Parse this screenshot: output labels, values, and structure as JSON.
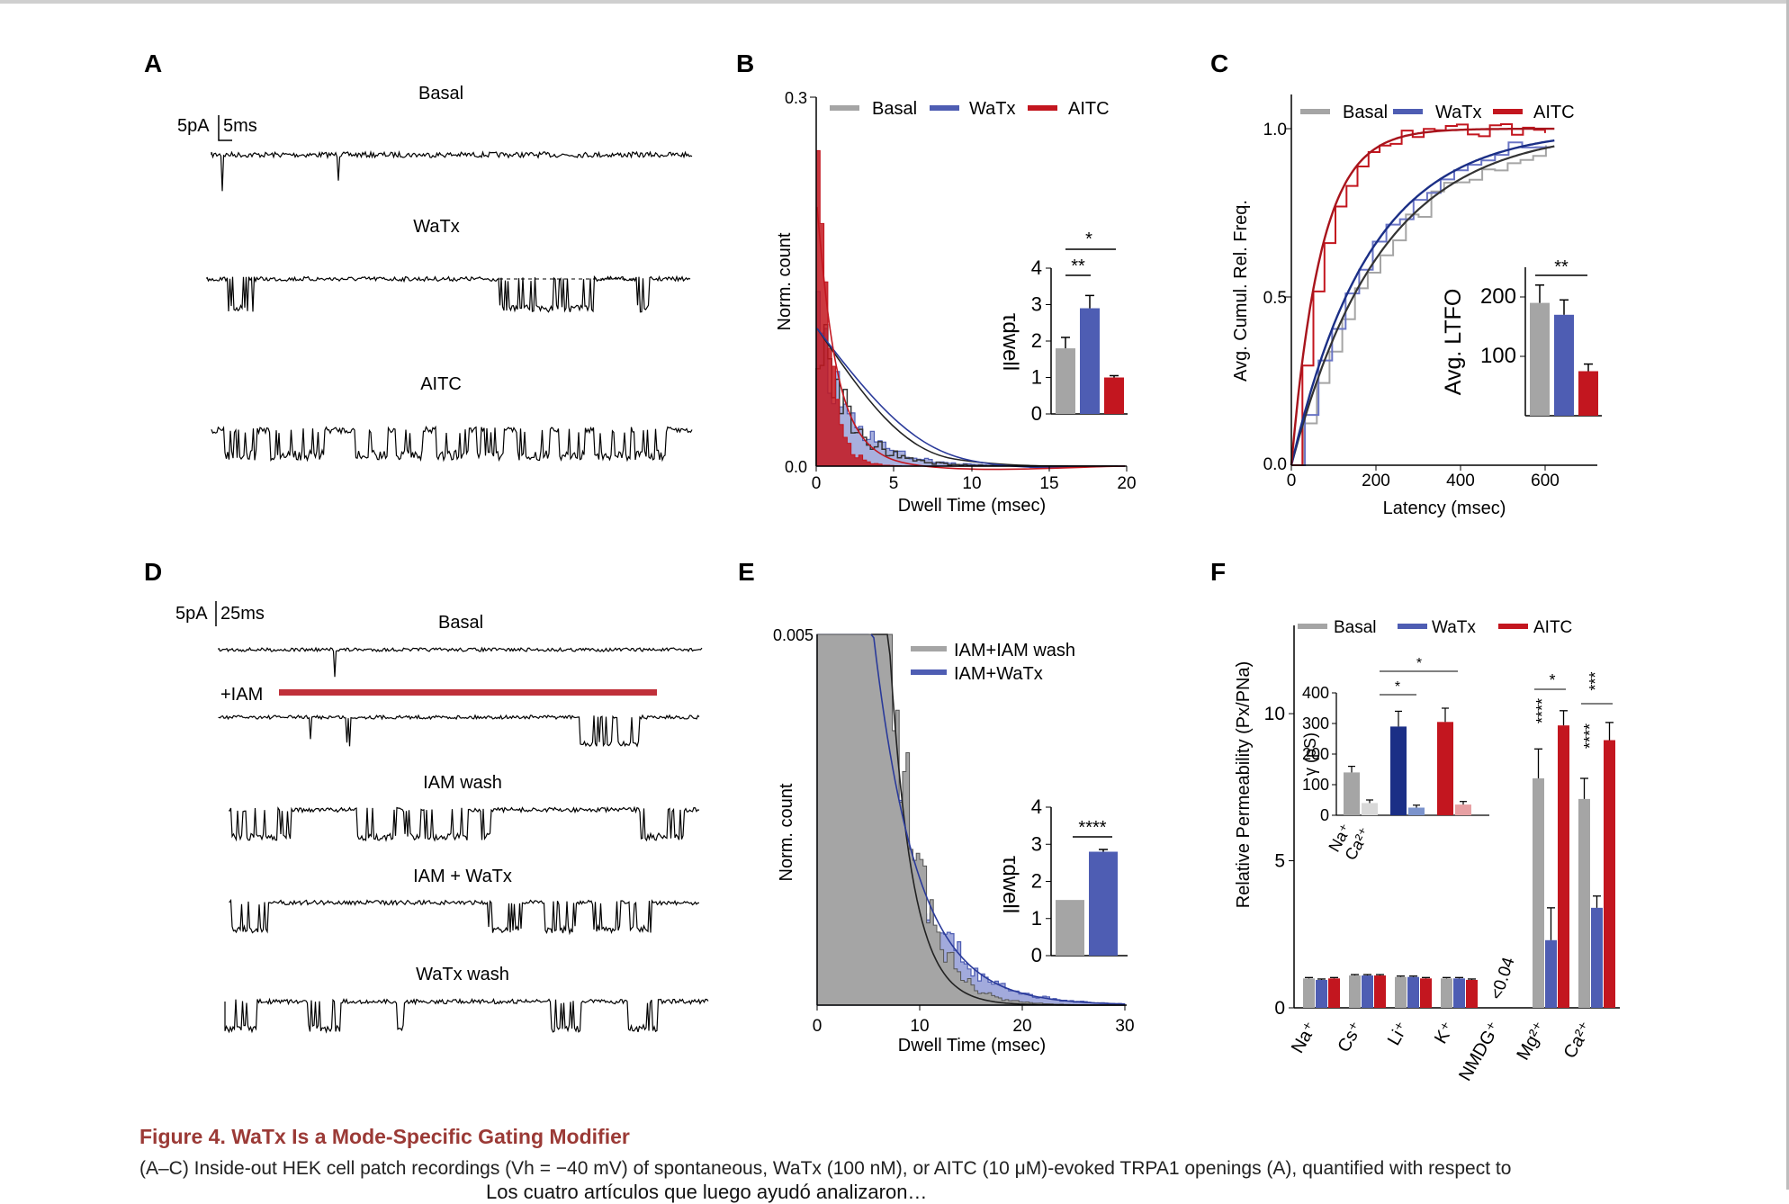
{
  "panels": {
    "A": {
      "letter": "A",
      "traces": [
        "Basal",
        "WaTx",
        "AITC"
      ],
      "scale_amp": "5pA",
      "scale_time": "5ms"
    },
    "B": {
      "letter": "B",
      "legend": [
        "Basal",
        "WaTx",
        "AITC"
      ],
      "ylabel": "Norm. count",
      "xlabel": "Dwell  Time (msec)",
      "yticks": [
        "0.3",
        "0.0"
      ],
      "xticks": [
        "0",
        "5",
        "10",
        "15",
        "20"
      ],
      "inset": {
        "ylabel": "τdwell",
        "yticks": [
          "4",
          "3",
          "2",
          "1",
          "0"
        ],
        "sig": [
          "*",
          "**"
        ]
      }
    },
    "C": {
      "letter": "C",
      "legend": [
        "Basal",
        "WaTx",
        "AITC"
      ],
      "ylabel": "Avg. Cumul. Rel. Freq.",
      "xlabel": "Latency (msec)",
      "yticks": [
        "1.0",
        "0.5",
        "0.0"
      ],
      "xticks": [
        "0",
        "200",
        "400",
        "600"
      ],
      "inset": {
        "ylabel": "Avg.  LTFO",
        "yticks": [
          "200",
          "100"
        ],
        "sig": [
          "**"
        ]
      }
    },
    "D": {
      "letter": "D",
      "traces": [
        "Basal",
        "IAM wash",
        "IAM + WaTx",
        "WaTx wash"
      ],
      "iam_label": "+IAM",
      "scale_amp": "5pA",
      "scale_time": "25ms"
    },
    "E": {
      "letter": "E",
      "legend": [
        "IAM+IAM wash",
        "IAM+WaTx"
      ],
      "ylabel": "Norm. count",
      "xlabel": "Dwell  Time (msec)",
      "yticks": [
        "0.005"
      ],
      "xticks": [
        "0",
        "10",
        "20",
        "30"
      ],
      "inset": {
        "ylabel": "τdwell",
        "yticks": [
          "4",
          "3",
          "2",
          "1",
          "0"
        ],
        "sig": [
          "****"
        ]
      }
    },
    "F": {
      "letter": "F",
      "legend": [
        "Basal",
        "WaTx",
        "AITC"
      ],
      "ylabel": "Relative  Permeability (Px/PNa)",
      "yticks": [
        "10",
        "5",
        "0"
      ],
      "xticks": [
        "Na⁺",
        "Cs⁺",
        "Li⁺",
        "K⁺",
        "NMDG⁺",
        "Mg²⁺",
        "Ca²⁺"
      ],
      "nmdg_note": "<0.04",
      "sig": [
        "*",
        "****",
        "***",
        "****"
      ],
      "inset": {
        "ylabel": "γ (pS)",
        "yticks": [
          "400",
          "300",
          "200",
          "100",
          "0"
        ],
        "xticks": [
          "Na⁺",
          "Ca²⁺"
        ],
        "sig": [
          "*",
          "*"
        ]
      }
    }
  },
  "chart_data": [
    {
      "type": "bar",
      "panel": "B-inset",
      "title": "",
      "ylabel": "τdwell",
      "ylim": [
        0,
        4
      ],
      "categories": [
        "Basal",
        "WaTx",
        "AITC"
      ],
      "values": [
        1.8,
        2.9,
        1.0
      ],
      "errors": [
        0.3,
        0.35,
        0.05
      ]
    },
    {
      "type": "bar",
      "panel": "C-inset",
      "title": "",
      "ylabel": "Avg.  LTFO",
      "ylim": [
        0,
        250
      ],
      "categories": [
        "Basal",
        "WaTx",
        "AITC"
      ],
      "values": [
        190,
        170,
        75
      ],
      "errors": [
        30,
        25,
        12
      ]
    },
    {
      "type": "bar",
      "panel": "E-inset",
      "title": "",
      "ylabel": "τdwell",
      "ylim": [
        0,
        4
      ],
      "categories": [
        "IAM+IAM wash",
        "IAM+WaTx"
      ],
      "values": [
        1.5,
        2.8
      ],
      "errors": [
        0.0,
        0.06
      ]
    },
    {
      "type": "bar",
      "panel": "F",
      "title": "",
      "ylabel": "Relative  Permeability (Px/PNa)",
      "ylim": [
        0,
        13
      ],
      "categories": [
        "Na⁺",
        "Cs⁺",
        "Li⁺",
        "K⁺",
        "NMDG⁺",
        "Mg²⁺",
        "Ca²⁺"
      ],
      "series": [
        {
          "name": "Basal",
          "values": [
            1.0,
            1.1,
            1.05,
            1.0,
            0.0,
            7.8,
            7.1
          ],
          "errors": [
            0.03,
            0.03,
            0.03,
            0.03,
            0.0,
            1.0,
            0.7
          ]
        },
        {
          "name": "WaTx",
          "values": [
            0.95,
            1.1,
            1.05,
            1.0,
            0.0,
            2.3,
            3.4
          ],
          "errors": [
            0.03,
            0.03,
            0.03,
            0.03,
            0.0,
            1.1,
            0.4
          ]
        },
        {
          "name": "AITC",
          "values": [
            1.0,
            1.1,
            1.0,
            0.95,
            0.0,
            9.6,
            9.1
          ],
          "errors": [
            0.03,
            0.03,
            0.03,
            0.03,
            0.0,
            0.5,
            0.6
          ]
        }
      ]
    },
    {
      "type": "bar",
      "panel": "F-inset",
      "title": "",
      "ylabel": "γ (pS)",
      "ylim": [
        0,
        400
      ],
      "categories": [
        "Na⁺",
        "Ca²⁺"
      ],
      "series": [
        {
          "name": "Basal",
          "values": [
            140,
            40
          ],
          "errors": [
            20,
            10
          ]
        },
        {
          "name": "WaTx",
          "values": [
            290,
            25
          ],
          "errors": [
            50,
            8
          ]
        },
        {
          "name": "AITC",
          "values": [
            305,
            35
          ],
          "errors": [
            45,
            10
          ]
        }
      ]
    }
  ],
  "colors": {
    "basal": "#a5a5a5",
    "watx": "#4e5db3",
    "aitc": "#c3161f",
    "dark": "#1b2f86",
    "iam_bar": "#c0303a"
  },
  "caption": {
    "title": "Figure 4.  WaTx Is a Mode-Specific Gating Modifier",
    "body": "(A–C) Inside-out HEK cell patch recordings (Vh = −40 mV) of spontaneous, WaTx (100 nM), or AITC (10 μM)-evoked TRPA1 openings (A), quantified with respect to",
    "cut": "Los cuatro artículos que luego ayudó analizaron…"
  }
}
